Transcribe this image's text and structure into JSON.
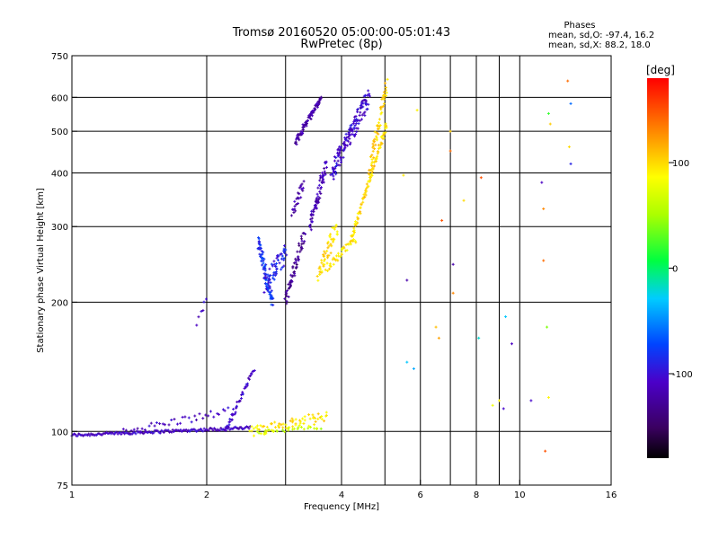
{
  "chart_data": {
    "type": "scatter",
    "title": "Tromsø 20160520 05:00:00-05:01:43",
    "subtitle": "RwPretec (8p)",
    "xlabel": "Frequency [MHz]",
    "ylabel": "Stationary phase Virtual Height [km]",
    "x_scale": "log",
    "y_scale": "log",
    "xlim": [
      1,
      16
    ],
    "ylim": [
      75,
      750
    ],
    "x_ticks": [
      1,
      2,
      4,
      6,
      8,
      10,
      16
    ],
    "x_tick_labels": [
      "1",
      "2",
      "4",
      "6",
      "8",
      "10",
      "16"
    ],
    "y_ticks": [
      75,
      100,
      200,
      300,
      400,
      500,
      600,
      750
    ],
    "y_tick_labels": [
      "75",
      "100",
      "200",
      "300",
      "400",
      "500",
      "600",
      "750"
    ],
    "grid": true,
    "stats": {
      "heading": "Phases",
      "line_o": "mean, sd,O:  -97.4, 16.2",
      "line_x": "mean, sd,X:  88.2, 18.0"
    },
    "colorbar": {
      "label": "[deg]",
      "range": [
        -180,
        180
      ],
      "ticks": [
        100,
        0,
        -100
      ],
      "tick_labels": [
        "100",
        "0",
        "-100"
      ]
    },
    "traces": [
      {
        "x0": 1.0,
        "x1": 2.5,
        "y0": 98,
        "y1": 102,
        "phase": -110,
        "n": 160,
        "jx": 0.0,
        "jy": 0.008
      },
      {
        "x0": 1.3,
        "x1": 2.3,
        "y0": 100,
        "y1": 112,
        "phase": -110,
        "n": 40,
        "jx": 0.004,
        "jy": 0.02
      },
      {
        "x0": 2.2,
        "x1": 2.55,
        "y0": 100,
        "y1": 140,
        "phase": -108,
        "n": 45,
        "jx": 0.004,
        "jy": 0.015
      },
      {
        "x0": 2.5,
        "x1": 3.7,
        "y0": 100,
        "y1": 108,
        "phase": 95,
        "n": 70,
        "jx": 0.01,
        "jy": 0.03
      },
      {
        "x0": 2.6,
        "x1": 3.6,
        "y0": 100,
        "y1": 102,
        "phase": 60,
        "n": 25,
        "jx": 0.01,
        "jy": 0.01
      },
      {
        "x0": 2.6,
        "x1": 2.8,
        "y0": 280,
        "y1": 200,
        "phase": -80,
        "n": 70,
        "jx": 0.008,
        "jy": 0.03
      },
      {
        "x0": 2.7,
        "x1": 3.0,
        "y0": 220,
        "y1": 260,
        "phase": -90,
        "n": 60,
        "jx": 0.01,
        "jy": 0.05
      },
      {
        "x0": 3.0,
        "x1": 3.3,
        "y0": 200,
        "y1": 290,
        "phase": -130,
        "n": 60,
        "jx": 0.006,
        "jy": 0.04
      },
      {
        "x0": 3.1,
        "x1": 3.3,
        "y0": 320,
        "y1": 380,
        "phase": -120,
        "n": 25,
        "jx": 0.006,
        "jy": 0.03
      },
      {
        "x0": 3.15,
        "x1": 3.6,
        "y0": 470,
        "y1": 600,
        "phase": -120,
        "n": 80,
        "jx": 0.006,
        "jy": 0.015
      },
      {
        "x0": 3.4,
        "x1": 3.7,
        "y0": 300,
        "y1": 420,
        "phase": -115,
        "n": 70,
        "jx": 0.006,
        "jy": 0.04
      },
      {
        "x0": 3.55,
        "x1": 3.9,
        "y0": 230,
        "y1": 300,
        "phase": 98,
        "n": 50,
        "jx": 0.008,
        "jy": 0.04
      },
      {
        "x0": 3.7,
        "x1": 4.3,
        "y0": 240,
        "y1": 280,
        "phase": 92,
        "n": 40,
        "jx": 0.005,
        "jy": 0.02
      },
      {
        "x0": 3.8,
        "x1": 4.6,
        "y0": 400,
        "y1": 600,
        "phase": -105,
        "n": 140,
        "jx": 0.008,
        "jy": 0.05
      },
      {
        "x0": 4.2,
        "x1": 5.05,
        "y0": 280,
        "y1": 520,
        "phase": 100,
        "n": 90,
        "jx": 0.004,
        "jy": 0.015
      },
      {
        "x0": 4.6,
        "x1": 5.05,
        "y0": 400,
        "y1": 640,
        "phase": 102,
        "n": 60,
        "jx": 0.006,
        "jy": 0.04
      },
      {
        "x0": 1.9,
        "x1": 2.0,
        "y0": 178,
        "y1": 205,
        "phase": -110,
        "n": 6,
        "jx": 0.004,
        "jy": 0.015
      }
    ],
    "points": [
      {
        "x": 5.6,
        "y": 225,
        "phase": -120
      },
      {
        "x": 5.6,
        "y": 145,
        "phase": -30
      },
      {
        "x": 5.8,
        "y": 140,
        "phase": -40
      },
      {
        "x": 5.9,
        "y": 560,
        "phase": 90
      },
      {
        "x": 5.5,
        "y": 395,
        "phase": 95
      },
      {
        "x": 6.5,
        "y": 175,
        "phase": 110
      },
      {
        "x": 6.6,
        "y": 165,
        "phase": 120
      },
      {
        "x": 6.7,
        "y": 310,
        "phase": 150
      },
      {
        "x": 7.0,
        "y": 450,
        "phase": 140
      },
      {
        "x": 7.0,
        "y": 500,
        "phase": 105
      },
      {
        "x": 7.1,
        "y": 245,
        "phase": -120
      },
      {
        "x": 7.1,
        "y": 210,
        "phase": 130
      },
      {
        "x": 7.5,
        "y": 345,
        "phase": 100
      },
      {
        "x": 8.1,
        "y": 165,
        "phase": -20
      },
      {
        "x": 8.2,
        "y": 390,
        "phase": 150
      },
      {
        "x": 8.7,
        "y": 115,
        "phase": 80
      },
      {
        "x": 9.0,
        "y": 118,
        "phase": 90
      },
      {
        "x": 9.2,
        "y": 113,
        "phase": -105
      },
      {
        "x": 9.3,
        "y": 185,
        "phase": -30
      },
      {
        "x": 9.6,
        "y": 160,
        "phase": -110
      },
      {
        "x": 10.6,
        "y": 118,
        "phase": -105
      },
      {
        "x": 11.2,
        "y": 380,
        "phase": -110
      },
      {
        "x": 11.3,
        "y": 330,
        "phase": 130
      },
      {
        "x": 11.3,
        "y": 250,
        "phase": 140
      },
      {
        "x": 11.4,
        "y": 90,
        "phase": 150
      },
      {
        "x": 11.5,
        "y": 175,
        "phase": 40
      },
      {
        "x": 11.6,
        "y": 120,
        "phase": 90
      },
      {
        "x": 11.6,
        "y": 550,
        "phase": 20
      },
      {
        "x": 11.7,
        "y": 520,
        "phase": 105
      },
      {
        "x": 12.8,
        "y": 655,
        "phase": 140
      },
      {
        "x": 12.9,
        "y": 460,
        "phase": 100
      },
      {
        "x": 13.0,
        "y": 580,
        "phase": -60
      },
      {
        "x": 13.0,
        "y": 420,
        "phase": -90
      }
    ]
  }
}
